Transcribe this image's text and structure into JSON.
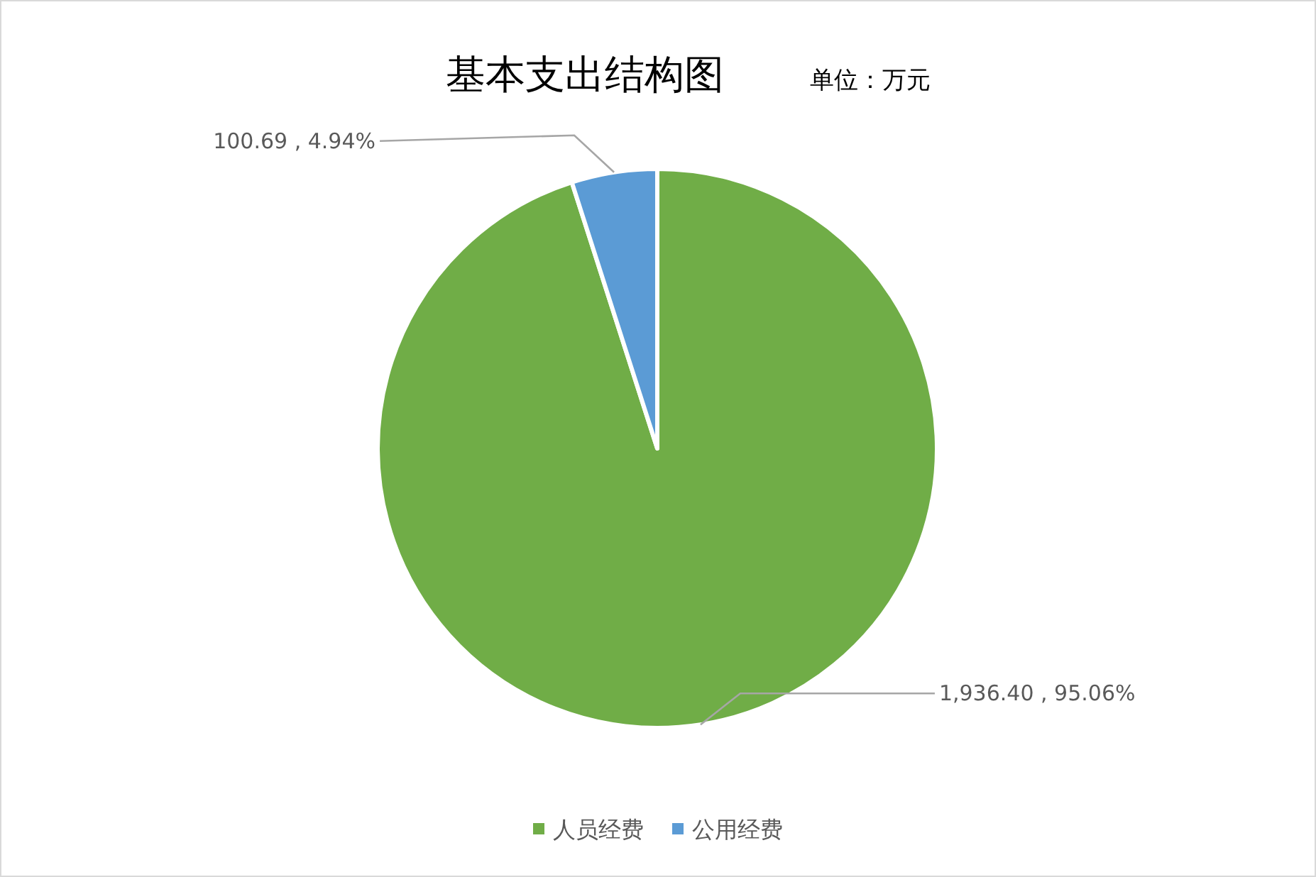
{
  "chart_data": {
    "type": "pie",
    "title": "基本支出结构图",
    "subtitle": "单位：万元",
    "categories": [
      "人员经费",
      "公用经费"
    ],
    "values": [
      1936.4,
      100.69
    ],
    "colors": [
      "#70ad47",
      "#5b9bd5"
    ],
    "value_labels": [
      "1,936.40 , 95.06%",
      "100.69 , 4.94%"
    ],
    "legend": "bottom"
  }
}
